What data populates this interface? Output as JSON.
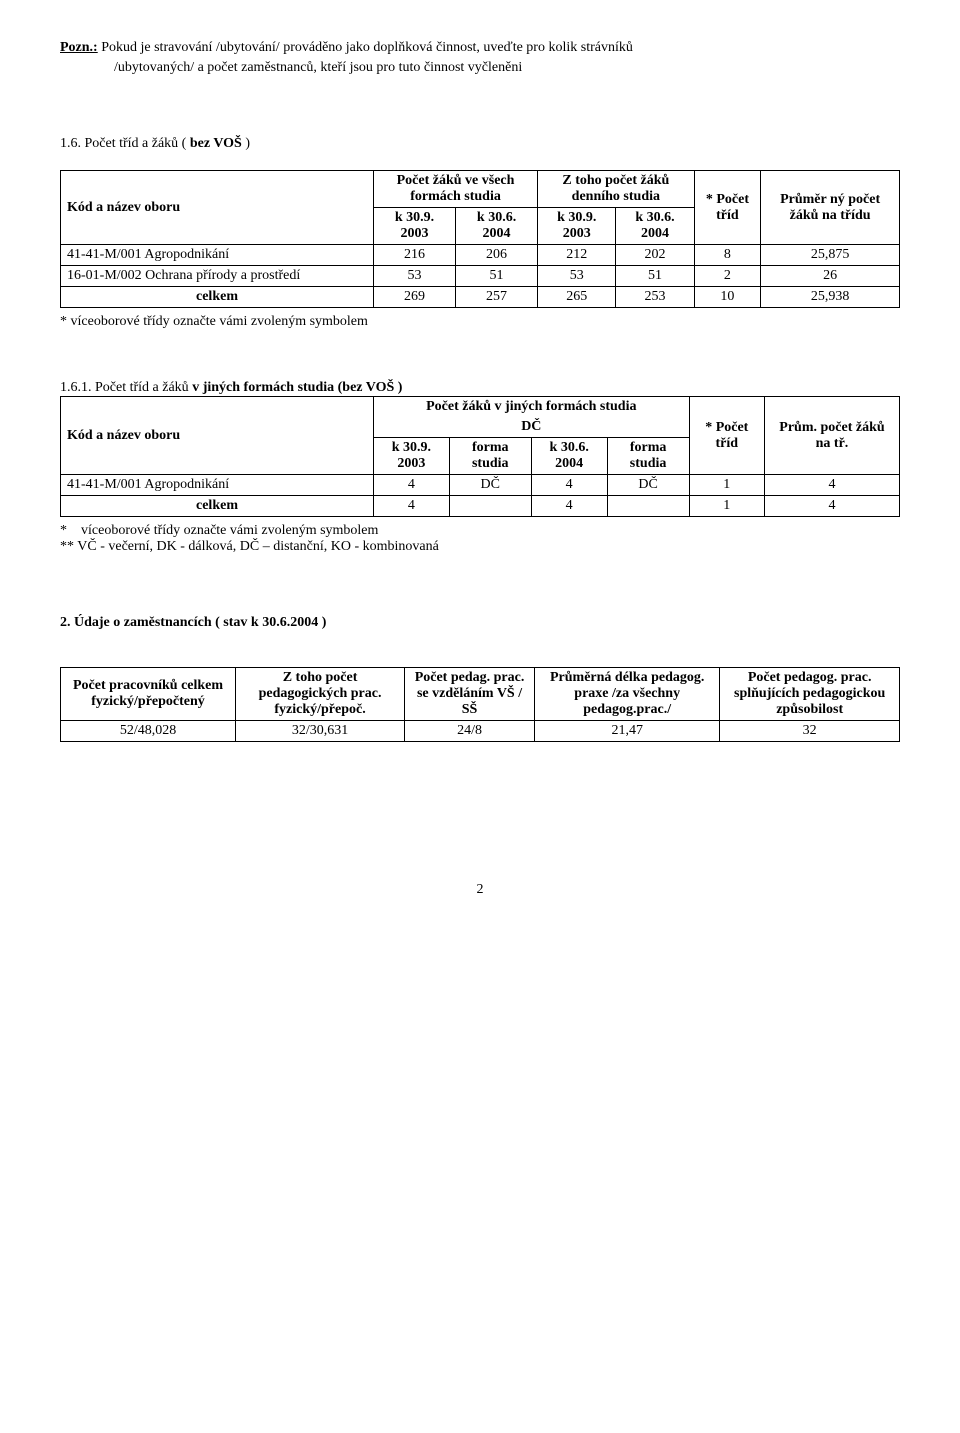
{
  "note": {
    "label": "Pozn.:",
    "line1": "Pokud je stravování /ubytování/ prováděno jako doplňková činnost, uveďte pro kolik strávníků",
    "line2": "/ubytovaných/ a počet zaměstnanců, kteří jsou pro tuto činnost vyčleněni"
  },
  "section16": {
    "heading_num": "1.6.",
    "heading_pre": "Počet tříd a žáků ( ",
    "heading_bold": "bez VOŠ",
    "heading_post": " )",
    "table": {
      "col_kod": "Kód a název oboru",
      "col_vsech_top": "Počet žáků ve všech formách studia",
      "col_den_top": "Z toho počet žáků denního studia",
      "col_k309_2003": "k 30.9. 2003",
      "col_k306_2004": "k 30.6. 2004",
      "col_pocet_trid": "* Počet tříd",
      "col_prumer": "Průměr ný počet žáků na třídu",
      "rows": [
        {
          "label": "41-41-M/001  Agropodnikání",
          "a": "216",
          "b": "206",
          "c": "212",
          "d": "202",
          "e": "8",
          "f": "25,875"
        },
        {
          "label": "16-01-M/002  Ochrana přírody a prostředí",
          "a": "53",
          "b": "51",
          "c": "53",
          "d": "51",
          "e": "2",
          "f": "26"
        }
      ],
      "total": {
        "label": "celkem",
        "a": "269",
        "b": "257",
        "c": "265",
        "d": "253",
        "e": "10",
        "f": "25,938"
      }
    },
    "footnote": "* víceoborové třídy označte vámi zvoleným symbolem"
  },
  "section161": {
    "heading_num": "1.6.1.",
    "heading_pre": "Počet tříd a žáků ",
    "heading_bold": "v jiných formách studia (bez VOŠ )",
    "table": {
      "col_kod": "Kód a název oboru",
      "col_top": "Počet žáků v jiných formách studia",
      "col_dc": "DČ",
      "col_k309": "k 30.9. 2003",
      "col_forma": "forma studia",
      "col_k306": "k 30.6. 2004",
      "col_pocet_trid": "* Počet tříd",
      "col_prum": "Prům. počet žáků na tř.",
      "rows": [
        {
          "label": "41-41-M/001  Agropodnikání",
          "a": "4",
          "b": "DČ",
          "c": "4",
          "d": "DČ",
          "e": "1",
          "f": "4"
        }
      ],
      "total": {
        "label": "celkem",
        "a": "4",
        "b": "",
        "c": "4",
        "d": "",
        "e": "1",
        "f": "4"
      }
    },
    "footnote1_star": "*",
    "footnote1": "víceoborové třídy označte vámi zvoleným symbolem",
    "footnote2": "** VČ - večerní, DK - dálková, DČ – distanční, KO - kombinovaná"
  },
  "section2": {
    "heading": "2. Údaje o zaměstnancích ( stav k 30.6.2004 )",
    "table": {
      "h1": "Počet pracovníků celkem fyzický/přepočtený",
      "h2": "Z toho počet pedagogických prac. fyzický/přepoč.",
      "h3": "Počet pedag. prac. se vzděláním VŠ / SŠ",
      "h4": "Průměrná délka pedagog. praxe /za všechny pedagog.prac./",
      "h5": "Počet pedagog. prac. splňujících pedagogickou způsobilost",
      "row": {
        "a": "52/48,028",
        "b": "32/30,631",
        "c": "24/8",
        "d": "21,47",
        "e": "32"
      }
    }
  },
  "page_number": "2"
}
